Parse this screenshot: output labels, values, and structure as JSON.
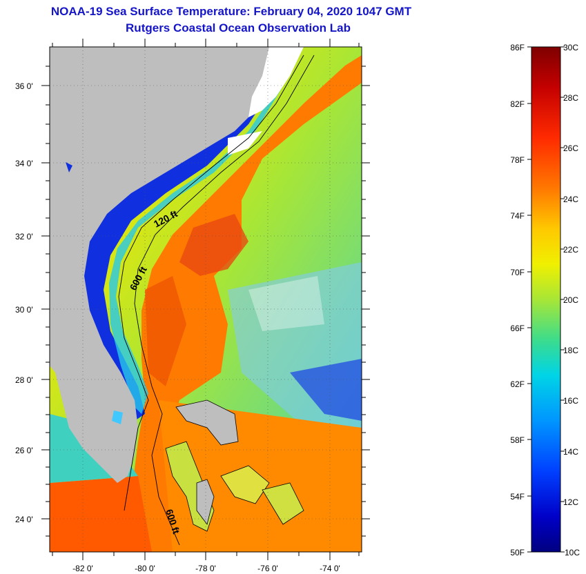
{
  "title": "NOAA-19 Sea Surface Temperature:  February 04, 2020 1047 GMT",
  "subtitle": "Rutgers Coastal Ocean Observation Lab",
  "map": {
    "lat_labels": [
      "36 0'",
      "34 0'",
      "32 0'",
      "30 0'",
      "28 0'",
      "26 0'",
      "24 0'"
    ],
    "lon_labels": [
      "-82 0'",
      "-80 0'",
      "-78 0'",
      "-76 0'",
      "-74 0'"
    ],
    "contour_labels": [
      "120 ft",
      "600 ft",
      "600 ft"
    ],
    "land_color": "#bebebe",
    "no_data_color": "#ffffff"
  },
  "colorbar": {
    "f_labels": [
      "86F",
      "82F",
      "78F",
      "74F",
      "70F",
      "66F",
      "62F",
      "58F",
      "54F",
      "50F"
    ],
    "c_labels": [
      "30C",
      "28C",
      "26C",
      "24C",
      "22C",
      "20C",
      "18C",
      "16C",
      "14C",
      "12C",
      "10C"
    ],
    "colors": [
      "#7f0000",
      "#c40000",
      "#ff2a00",
      "#ff7800",
      "#ffc800",
      "#f0f000",
      "#a8e636",
      "#3cdc8c",
      "#00d4e6",
      "#0096ff",
      "#0040ff",
      "#0000c8",
      "#000080"
    ]
  }
}
